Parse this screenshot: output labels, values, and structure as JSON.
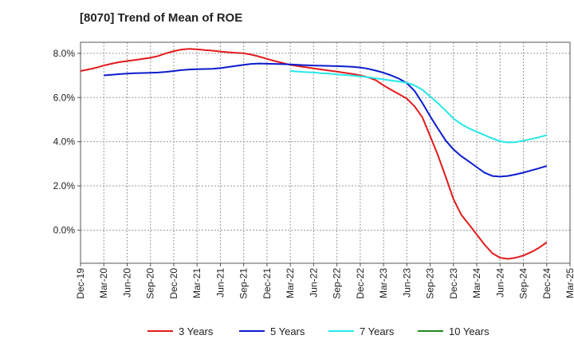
{
  "chart_data": {
    "type": "line",
    "title": "[8070]  Trend of Mean of ROE",
    "xlabel": "",
    "ylabel": "",
    "ylim": [
      -1.5,
      8.5
    ],
    "yticks": [
      0.0,
      2.0,
      4.0,
      6.0,
      8.0
    ],
    "ytick_labels": [
      "0.0%",
      "2.0%",
      "4.0%",
      "6.0%",
      "8.0%"
    ],
    "xticks": [
      "Dec-19",
      "Mar-20",
      "Jun-20",
      "Sep-20",
      "Dec-20",
      "Mar-21",
      "Jun-21",
      "Sep-21",
      "Dec-21",
      "Mar-22",
      "Jun-22",
      "Sep-22",
      "Dec-22",
      "Mar-23",
      "Jun-23",
      "Sep-23",
      "Dec-23",
      "Mar-24",
      "Jun-24",
      "Sep-24",
      "Dec-24",
      "Mar-25"
    ],
    "grid": true,
    "legend_position": "bottom",
    "series": [
      {
        "name": "3 Years",
        "color": "#e31a1c",
        "x": [
          0,
          0.33,
          0.67,
          1,
          1.33,
          1.67,
          2,
          2.33,
          2.67,
          3,
          3.33,
          3.67,
          4,
          4.33,
          4.67,
          5,
          5.33,
          5.67,
          6,
          6.33,
          6.67,
          7,
          7.33,
          7.67,
          8,
          8.33,
          8.67,
          9,
          9.33,
          9.67,
          10,
          10.33,
          10.67,
          11,
          11.33,
          11.67,
          12,
          12.33,
          12.67,
          13,
          13.33,
          13.67,
          14,
          14.33,
          14.67,
          15,
          15.33,
          15.67,
          16,
          16.33,
          16.67,
          17,
          17.33,
          17.67,
          18,
          18.33,
          18.67,
          19,
          19.33,
          19.67,
          20
        ],
        "values": [
          7.2,
          7.27,
          7.35,
          7.45,
          7.53,
          7.6,
          7.65,
          7.7,
          7.75,
          7.8,
          7.88,
          8.0,
          8.1,
          8.17,
          8.2,
          8.18,
          8.15,
          8.12,
          8.08,
          8.05,
          8.02,
          8.0,
          7.94,
          7.85,
          7.75,
          7.65,
          7.56,
          7.48,
          7.42,
          7.37,
          7.32,
          7.27,
          7.22,
          7.17,
          7.12,
          7.07,
          7.0,
          6.92,
          6.78,
          6.55,
          6.35,
          6.15,
          5.95,
          5.6,
          5.1,
          4.25,
          3.4,
          2.4,
          1.4,
          0.7,
          0.25,
          -0.2,
          -0.65,
          -1.05,
          -1.25,
          -1.3,
          -1.25,
          -1.15,
          -1.0,
          -0.8,
          -0.55
        ]
      },
      {
        "name": "5 Years",
        "color": "#0a1ccc",
        "x": [
          1,
          1.33,
          1.67,
          2,
          2.33,
          2.67,
          3,
          3.33,
          3.67,
          4,
          4.33,
          4.67,
          5,
          5.33,
          5.67,
          6,
          6.33,
          6.67,
          7,
          7.33,
          7.67,
          8,
          8.33,
          8.67,
          9,
          9.33,
          9.67,
          10,
          10.33,
          10.67,
          11,
          11.33,
          11.67,
          12,
          12.33,
          12.67,
          13,
          13.33,
          13.67,
          14,
          14.33,
          14.67,
          15,
          15.33,
          15.67,
          16,
          16.33,
          16.67,
          17,
          17.33,
          17.67,
          18,
          18.33,
          18.67,
          19,
          19.33,
          19.67,
          20
        ],
        "values": [
          7.0,
          7.03,
          7.06,
          7.08,
          7.1,
          7.11,
          7.12,
          7.13,
          7.16,
          7.2,
          7.24,
          7.27,
          7.28,
          7.29,
          7.3,
          7.33,
          7.38,
          7.43,
          7.48,
          7.52,
          7.54,
          7.53,
          7.52,
          7.51,
          7.5,
          7.48,
          7.46,
          7.45,
          7.44,
          7.43,
          7.42,
          7.41,
          7.39,
          7.36,
          7.3,
          7.22,
          7.12,
          7.0,
          6.85,
          6.65,
          6.3,
          5.75,
          5.15,
          4.6,
          4.05,
          3.65,
          3.35,
          3.1,
          2.85,
          2.6,
          2.45,
          2.42,
          2.45,
          2.52,
          2.6,
          2.7,
          2.8,
          2.9
        ]
      },
      {
        "name": "7 Years",
        "color": "#26e8e8",
        "x": [
          9,
          9.33,
          9.67,
          10,
          10.33,
          10.67,
          11,
          11.33,
          11.67,
          12,
          12.33,
          12.67,
          13,
          13.33,
          13.67,
          14,
          14.33,
          14.67,
          15,
          15.33,
          15.67,
          16,
          16.33,
          16.67,
          17,
          17.33,
          17.67,
          18,
          18.33,
          18.67,
          19,
          19.33,
          19.67,
          20
        ],
        "values": [
          7.2,
          7.17,
          7.15,
          7.13,
          7.1,
          7.08,
          7.05,
          7.02,
          6.99,
          6.96,
          6.92,
          6.87,
          6.82,
          6.77,
          6.72,
          6.67,
          6.55,
          6.35,
          6.05,
          5.75,
          5.4,
          5.05,
          4.8,
          4.6,
          4.45,
          4.3,
          4.15,
          4.02,
          3.97,
          3.98,
          4.05,
          4.12,
          4.2,
          4.3
        ]
      },
      {
        "name": "10 Years",
        "color": "#1e8c1e",
        "x": [],
        "values": []
      }
    ]
  }
}
